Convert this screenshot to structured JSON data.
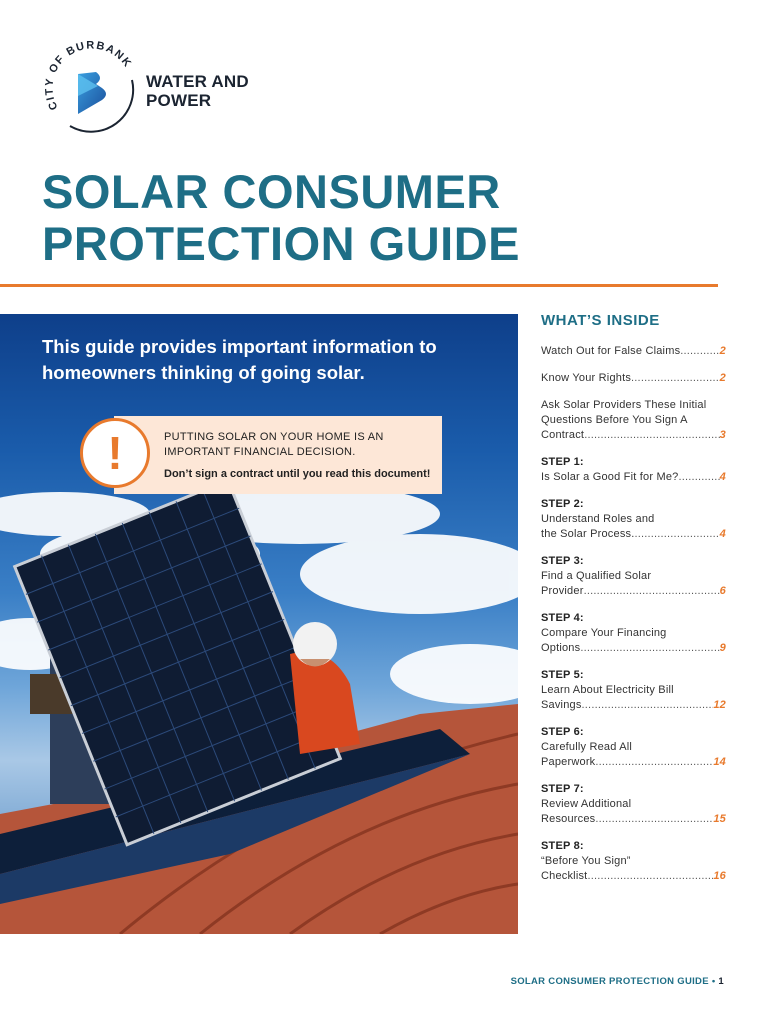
{
  "logo": {
    "ring_text": "CITY OF BURBANK",
    "org_line1": "WATER AND",
    "org_line2": "POWER"
  },
  "title": {
    "line1": "SOLAR CONSUMER",
    "line2": "PROTECTION GUIDE"
  },
  "hero": {
    "intro": "This guide provides important information to homeowners thinking of going solar.",
    "callout_icon": "exclamation-icon",
    "callout_heading": "PUTTING SOLAR ON YOUR HOME IS AN IMPORTANT FINANCIAL DECISION.",
    "callout_body": "Don’t sign a contract until you read this document!"
  },
  "toc": {
    "heading": "WHAT’S INSIDE",
    "items": [
      {
        "step": "",
        "text": "Watch Out for False Claims",
        "page": "2"
      },
      {
        "step": "",
        "text": "Know Your Rights",
        "page": "2"
      },
      {
        "step": "",
        "text": "Ask Solar Providers These Initial Questions Before You Sign A",
        "last": "Contract",
        "page": "3"
      },
      {
        "step": "STEP 1:",
        "text": "",
        "last": "Is Solar a Good Fit for Me?",
        "page": "4"
      },
      {
        "step": "STEP 2:",
        "text": "Understand Roles and",
        "last": "the Solar Process.",
        "page": "4"
      },
      {
        "step": "STEP 3:",
        "text": "Find a Qualified Solar",
        "last": "Provider",
        "page": "6"
      },
      {
        "step": "STEP 4:",
        "text": "Compare Your Financing",
        "last": "Options",
        "page": "9"
      },
      {
        "step": "STEP 5:",
        "text": "Learn About Electricity Bill",
        "last": "Savings",
        "page": "12"
      },
      {
        "step": "STEP 6:",
        "text": "Carefully Read All",
        "last": "Paperwork",
        "page": "14"
      },
      {
        "step": "STEP 7:",
        "text": "Review Additional",
        "last": "Resources",
        "page": "15"
      },
      {
        "step": "STEP 8:",
        "text": "“Before You Sign”",
        "last": "Checklist",
        "page": "16"
      }
    ]
  },
  "footer": {
    "label": "SOLAR CONSUMER PROTECTION GUIDE",
    "separator": "•",
    "page": "1"
  },
  "colors": {
    "title_teal": "#1e6e86",
    "accent_orange": "#e87a2d",
    "callout_bg": "#fde7d7"
  }
}
